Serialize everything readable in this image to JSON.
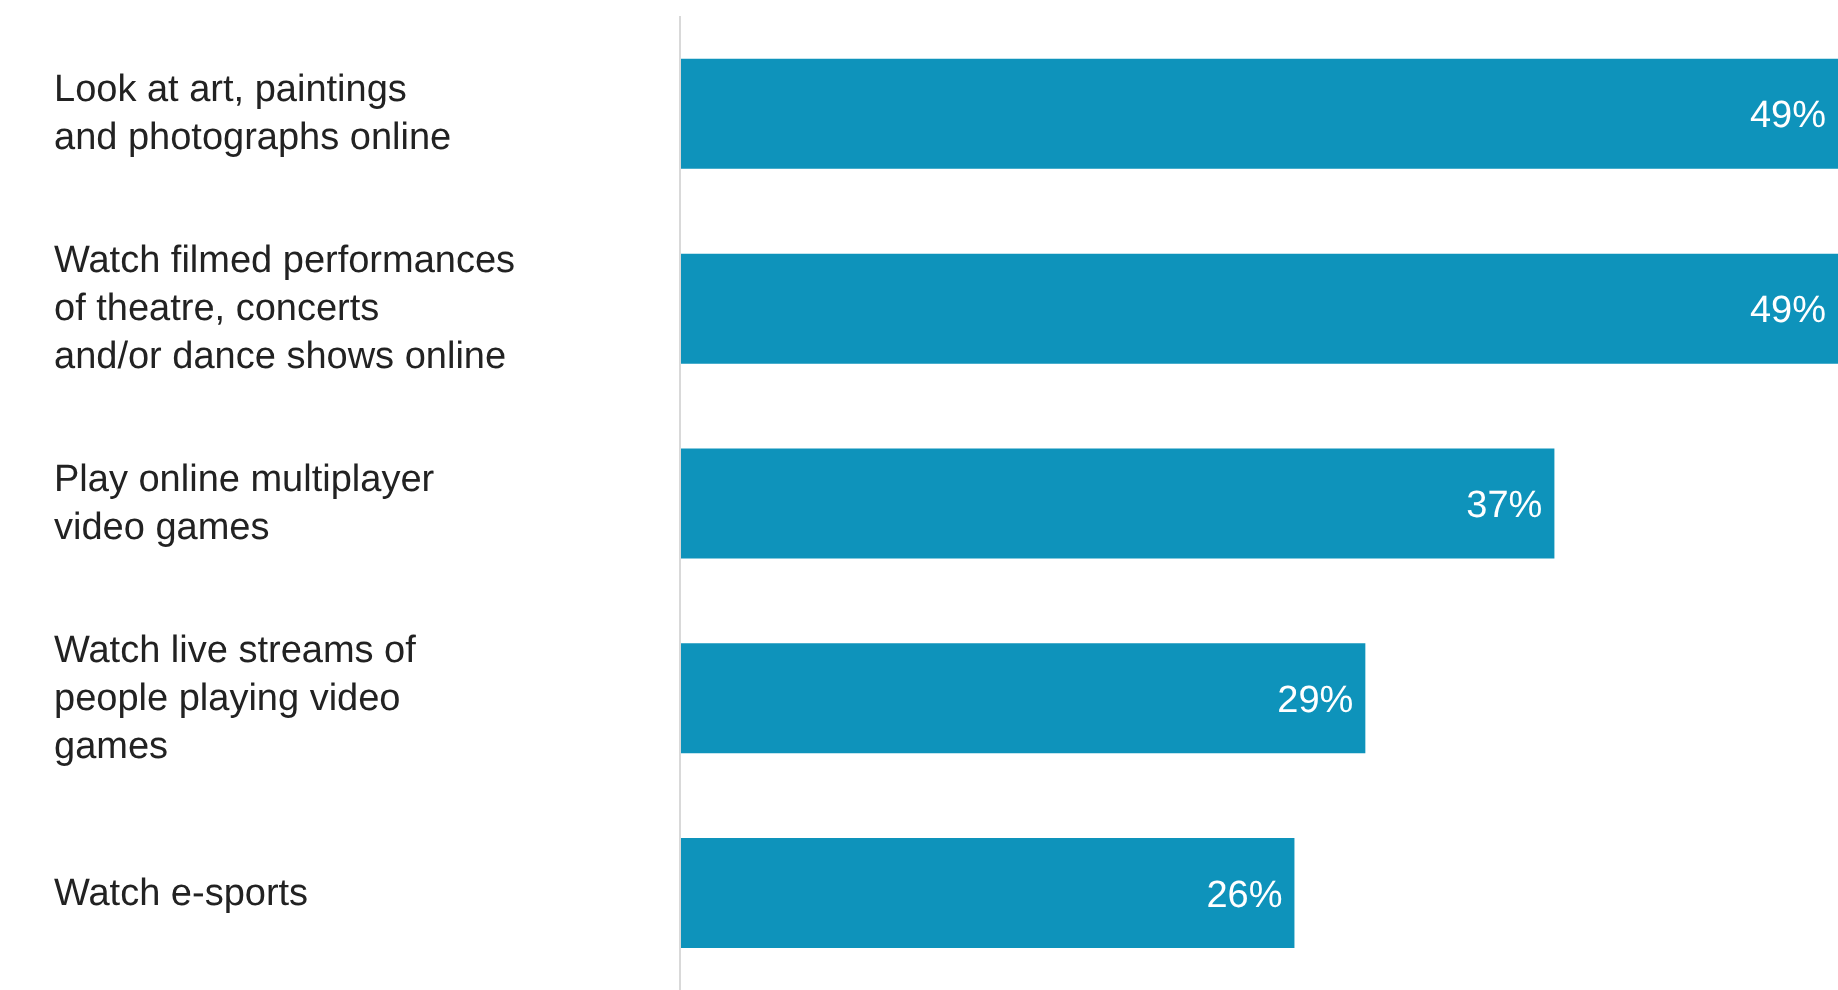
{
  "chart_data": {
    "type": "bar",
    "orientation": "horizontal",
    "categories": [
      "Look at art, paintings and photographs online",
      "Watch filmed performances of theatre, concerts and/or dance shows online",
      "Play online multiplayer video games",
      "Watch live streams of people playing video games",
      "Watch e-sports"
    ],
    "values": [
      49,
      49,
      37,
      29,
      26
    ],
    "value_labels": [
      "49%",
      "49%",
      "37%",
      "29%",
      "26%"
    ],
    "color": "#0e93bb",
    "xlim": [
      0,
      49
    ],
    "tick_labels": "y",
    "grid": false
  }
}
